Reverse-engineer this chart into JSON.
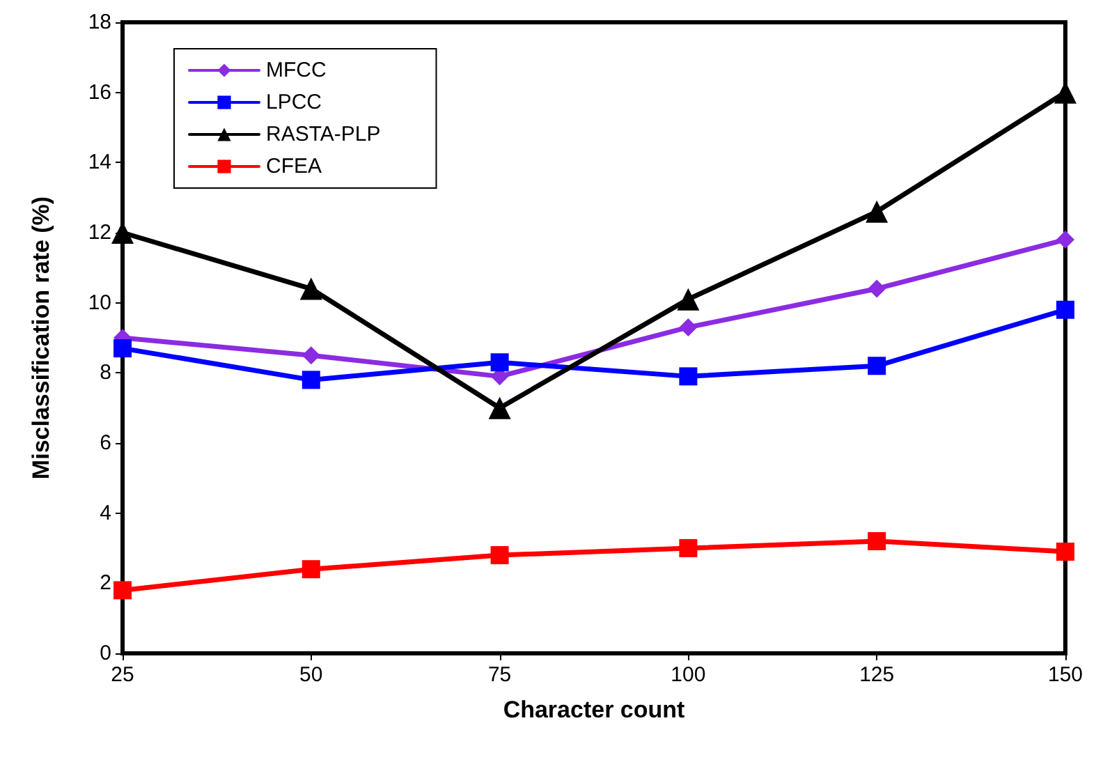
{
  "chart_data": {
    "type": "line",
    "xlabel": "Character count",
    "ylabel": "Misclassification rate (%)",
    "x": [
      25,
      50,
      75,
      100,
      125,
      150
    ],
    "xlim": [
      25,
      150
    ],
    "xticks": [
      25,
      50,
      75,
      100,
      125,
      150
    ],
    "ylim": [
      0,
      18
    ],
    "yticks": [
      0,
      2,
      4,
      6,
      8,
      10,
      12,
      14,
      16,
      18
    ],
    "grid": false,
    "legend": "top left",
    "series": [
      {
        "name": "MFCC",
        "color": "#8b2be2",
        "marker": "diamond",
        "values": [
          9.0,
          8.5,
          7.9,
          9.3,
          10.4,
          11.8
        ]
      },
      {
        "name": "LPCC",
        "color": "#0000ff",
        "marker": "square",
        "values": [
          8.7,
          7.8,
          8.3,
          7.9,
          8.2,
          9.8
        ]
      },
      {
        "name": "RASTA-PLP",
        "color": "#000000",
        "marker": "triangle",
        "values": [
          12.0,
          10.4,
          7.0,
          10.1,
          12.6,
          16.0
        ]
      },
      {
        "name": "CFEA",
        "color": "#ff0000",
        "marker": "square",
        "values": [
          1.8,
          2.4,
          2.8,
          3.0,
          3.2,
          2.9
        ]
      }
    ]
  }
}
